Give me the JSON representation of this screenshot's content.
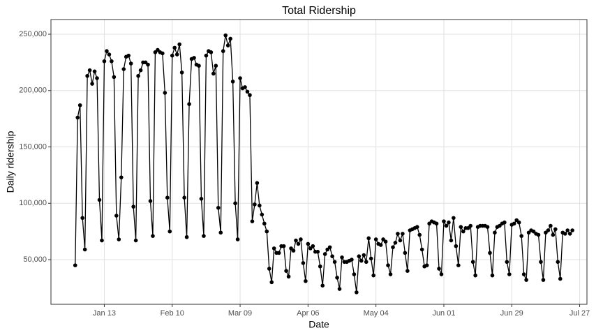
{
  "chart_data": {
    "type": "line",
    "title": "Total Ridership",
    "x_label": "Date",
    "y_label": "Daily ridership",
    "x": [
      "01-01",
      "01-02",
      "01-03",
      "01-04",
      "01-05",
      "01-06",
      "01-07",
      "01-08",
      "01-09",
      "01-10",
      "01-11",
      "01-12",
      "01-13",
      "01-14",
      "01-15",
      "01-16",
      "01-17",
      "01-18",
      "01-19",
      "01-20",
      "01-21",
      "01-22",
      "01-23",
      "01-24",
      "01-25",
      "01-26",
      "01-27",
      "01-28",
      "01-29",
      "01-30",
      "01-31",
      "02-01",
      "02-02",
      "02-03",
      "02-04",
      "02-05",
      "02-06",
      "02-07",
      "02-08",
      "02-09",
      "02-10",
      "02-11",
      "02-12",
      "02-13",
      "02-14",
      "02-15",
      "02-16",
      "02-17",
      "02-18",
      "02-19",
      "02-20",
      "02-21",
      "02-22",
      "02-23",
      "02-24",
      "02-25",
      "02-26",
      "02-27",
      "02-28",
      "02-29",
      "03-01",
      "03-02",
      "03-03",
      "03-04",
      "03-05",
      "03-06",
      "03-07",
      "03-08",
      "03-09",
      "03-10",
      "03-11",
      "03-12",
      "03-13",
      "03-14",
      "03-15",
      "03-16",
      "03-17",
      "03-18",
      "03-19",
      "03-20",
      "03-21",
      "03-22",
      "03-23",
      "03-24",
      "03-25",
      "03-26",
      "03-27",
      "03-28",
      "03-29",
      "03-30",
      "03-31",
      "04-01",
      "04-02",
      "04-03",
      "04-04",
      "04-05",
      "04-06",
      "04-07",
      "04-08",
      "04-09",
      "04-10",
      "04-11",
      "04-12",
      "04-13",
      "04-14",
      "04-15",
      "04-16",
      "04-17",
      "04-18",
      "04-19",
      "04-20",
      "04-21",
      "04-22",
      "04-23",
      "04-24",
      "04-25",
      "04-26",
      "04-27",
      "04-28",
      "04-29",
      "04-30",
      "05-01",
      "05-02",
      "05-03",
      "05-04",
      "05-05",
      "05-06",
      "05-07",
      "05-08",
      "05-09",
      "05-10",
      "05-11",
      "05-12",
      "05-13",
      "05-14",
      "05-15",
      "05-16",
      "05-17",
      "05-18",
      "05-19",
      "05-20",
      "05-21",
      "05-22",
      "05-23",
      "05-24",
      "05-25",
      "05-26",
      "05-27",
      "05-28",
      "05-29",
      "05-30",
      "05-31",
      "06-01",
      "06-02",
      "06-03",
      "06-04",
      "06-05",
      "06-06",
      "06-07",
      "06-08",
      "06-09",
      "06-10",
      "06-11",
      "06-12",
      "06-13",
      "06-14",
      "06-15",
      "06-16",
      "06-17",
      "06-18",
      "06-19",
      "06-20",
      "06-21",
      "06-22",
      "06-23",
      "06-24",
      "06-25",
      "06-26",
      "06-27",
      "06-28",
      "06-29",
      "06-30",
      "07-01",
      "07-02",
      "07-03",
      "07-04",
      "07-05",
      "07-06",
      "07-07",
      "07-08",
      "07-09",
      "07-10",
      "07-11",
      "07-12",
      "07-13",
      "07-14",
      "07-15",
      "07-16",
      "07-17",
      "07-18",
      "07-19",
      "07-20",
      "07-21",
      "07-22",
      "07-23",
      "07-24"
    ],
    "series": [
      {
        "color": "#000000",
        "values": [
          45000,
          176000,
          187000,
          87000,
          59000,
          213000,
          218000,
          206000,
          217000,
          211000,
          103000,
          67000,
          226000,
          235000,
          232000,
          226000,
          212000,
          89000,
          68000,
          123000,
          219000,
          230000,
          231000,
          224000,
          97000,
          67000,
          213000,
          218000,
          225000,
          225000,
          223000,
          102000,
          71000,
          234000,
          236000,
          234000,
          233000,
          198000,
          105000,
          75000,
          231000,
          238000,
          232000,
          241000,
          216000,
          105000,
          70000,
          188000,
          228000,
          229000,
          223000,
          222000,
          104000,
          71000,
          231000,
          235000,
          234000,
          215000,
          222000,
          96000,
          74000,
          235000,
          249000,
          240000,
          246000,
          208000,
          100000,
          68000,
          211000,
          202000,
          203000,
          199000,
          196000,
          84000,
          99000,
          118000,
          98000,
          90000,
          82000,
          75000,
          42000,
          30000,
          60000,
          56000,
          56000,
          62000,
          62000,
          40000,
          35000,
          60000,
          58000,
          67000,
          64000,
          68000,
          47000,
          31000,
          64000,
          60000,
          62000,
          57000,
          57000,
          44000,
          27000,
          55000,
          59000,
          61000,
          53000,
          48000,
          34000,
          24000,
          52000,
          48000,
          48000,
          49000,
          50000,
          37000,
          21000,
          53000,
          49000,
          54000,
          48000,
          69000,
          51000,
          36000,
          68000,
          64000,
          63000,
          68000,
          66000,
          45000,
          37000,
          61000,
          65000,
          73000,
          67000,
          73000,
          56000,
          40000,
          76000,
          77000,
          78000,
          79000,
          72000,
          59000,
          44000,
          45000,
          82000,
          84000,
          83000,
          82000,
          42000,
          37000,
          84000,
          80000,
          83000,
          67000,
          87000,
          62000,
          45000,
          79000,
          75000,
          78000,
          78000,
          80000,
          48000,
          36000,
          79000,
          80000,
          80000,
          80000,
          79000,
          56000,
          36000,
          74000,
          79000,
          80000,
          82000,
          83000,
          48000,
          37000,
          81000,
          82000,
          85000,
          83000,
          71000,
          37000,
          32000,
          74000,
          76000,
          75000,
          73000,
          72000,
          48000,
          32000,
          74000,
          76000,
          80000,
          72000,
          77000,
          48000,
          33000,
          74000,
          73000,
          76000,
          73000,
          76000
        ]
      }
    ],
    "xlim": [
      "12-22",
      "07-30"
    ],
    "xticks": [
      {
        "value": "01-13",
        "label": "Jan 13"
      },
      {
        "value": "02-10",
        "label": "Feb 10"
      },
      {
        "value": "03-09",
        "label": "Mar 09"
      },
      {
        "value": "04-06",
        "label": "Apr 06"
      },
      {
        "value": "05-04",
        "label": "May 04"
      },
      {
        "value": "06-01",
        "label": "Jun 01"
      },
      {
        "value": "06-29",
        "label": "Jun 29"
      },
      {
        "value": "07-27",
        "label": "Jul 27"
      }
    ],
    "ylim": [
      10400,
      263000
    ],
    "yticks": [
      {
        "value": 50000,
        "label": "50,000"
      },
      {
        "value": 100000,
        "label": "100,000"
      },
      {
        "value": 150000,
        "label": "150,000"
      },
      {
        "value": 200000,
        "label": "200,000"
      },
      {
        "value": 250000,
        "label": "250,000"
      }
    ],
    "grid": true
  }
}
